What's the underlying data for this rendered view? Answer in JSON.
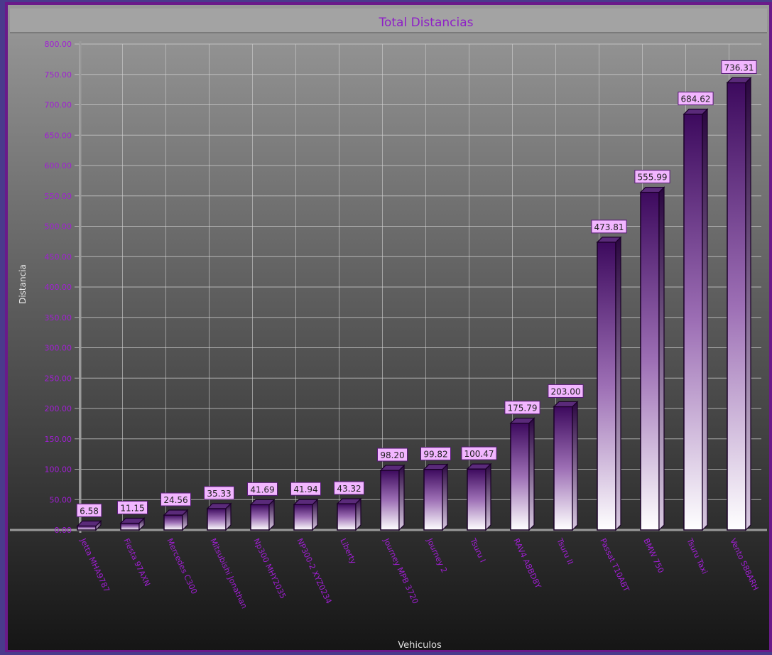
{
  "chart_data": {
    "type": "bar",
    "title": "Total Distancias",
    "xlabel": "Vehiculos",
    "ylabel": "Distancia",
    "ylim": [
      0,
      800
    ],
    "yticks": [
      "0.00",
      "50.00",
      "100.00",
      "150.00",
      "200.00",
      "250.00",
      "300.00",
      "350.00",
      "400.00",
      "450.00",
      "500.00",
      "550.00",
      "600.00",
      "650.00",
      "700.00",
      "750.00",
      "800.00"
    ],
    "grid": true,
    "categories": [
      "Jetta MHA9787",
      "Fiesta 97AXN",
      "Mercedes C300",
      "Mitsubishi Jonathan",
      "Np300 MHY2035",
      "NP300-2 XYZ0234",
      "Liberty",
      "Journey MPB 3720",
      "Journey 2",
      "Tsuru I",
      "RAV4 A8BD8Y",
      "Tsuru II",
      "Passat T10ABT",
      "BMW 750",
      "Tsuru Taxi",
      "Vento S88ARH"
    ],
    "values": [
      6.58,
      11.15,
      24.56,
      35.33,
      41.69,
      41.94,
      43.32,
      98.2,
      99.82,
      100.47,
      175.79,
      203.0,
      473.81,
      555.99,
      684.62,
      736.31
    ],
    "data_labels": [
      "6.58",
      "11.15",
      "24.56",
      "35.33",
      "41.69",
      "41.94",
      "43.32",
      "98.20",
      "99.82",
      "100.47",
      "175.79",
      "203.00",
      "473.81",
      "555.99",
      "684.62",
      "736.31"
    ],
    "colors": {
      "bar_top": "#3d0a5e",
      "bar_bottom": "#ffffff",
      "label_bg": "#f2b6ff",
      "axis_text": "#a21ed6",
      "title_text": "#8e1fc7",
      "frame": "#6a1a8a"
    }
  }
}
